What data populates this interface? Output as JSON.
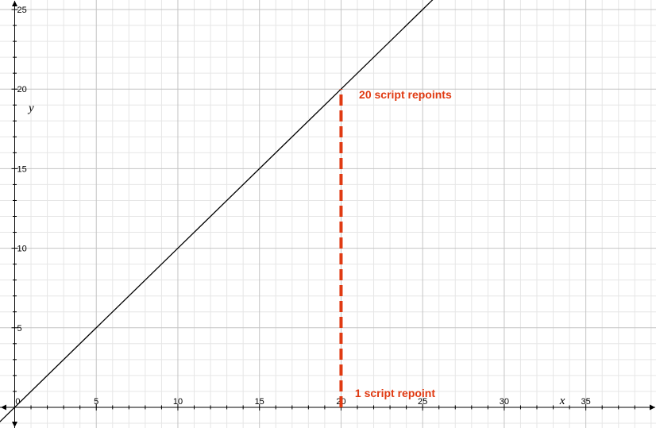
{
  "chart_data": {
    "type": "line",
    "xlabel": "x",
    "ylabel": "y",
    "xlim": [
      -0.9,
      39.3
    ],
    "ylim": [
      -1.3,
      25.6
    ],
    "x_ticks": [
      0,
      5,
      10,
      15,
      20,
      25,
      30,
      35
    ],
    "y_ticks": [
      5,
      10,
      15,
      20,
      25
    ],
    "x_tick_labels": [
      "0",
      "5",
      "10",
      "15",
      "20",
      "25",
      "30",
      "35"
    ],
    "y_tick_labels": [
      "5",
      "10",
      "15",
      "20",
      "25"
    ],
    "grid": true,
    "minor_grid_step": 1,
    "major_grid_step": 5,
    "series": [
      {
        "x": [
          -1,
          0,
          5,
          10,
          15,
          20,
          25,
          26
        ],
        "y": [
          -1,
          0,
          5,
          10,
          15,
          20,
          25,
          26
        ],
        "color": "#000000"
      }
    ],
    "vertical_line": {
      "x": 20,
      "y_from": 0,
      "y_to": 20,
      "color": "#e03a12",
      "style": "dashed"
    },
    "annotations": [
      {
        "text": "20 script repoints",
        "x": 21.1,
        "y": 19.4,
        "color": "#e03a12"
      },
      {
        "text": "1 script repoint",
        "x": 20.85,
        "y": 0.65,
        "color": "#e03a12"
      }
    ]
  }
}
